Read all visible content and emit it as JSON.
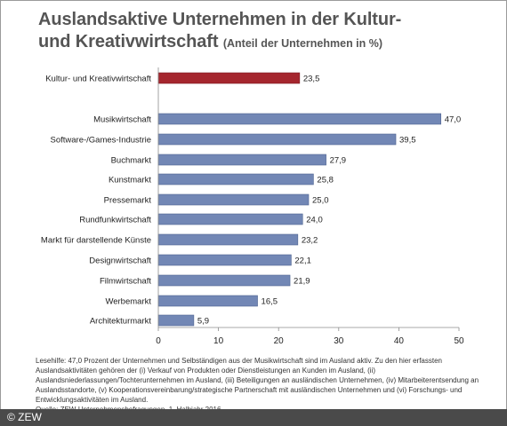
{
  "title": {
    "line1": "Auslandsaktive Unternehmen in der Kultur-",
    "line2": "und Kreativwirtschaft",
    "subtitle": "(Anteil der Unternehmen in %)"
  },
  "colors": {
    "highlight_bar": "#a5262e",
    "bar": "#7287b5",
    "bar_border": "#4f6490",
    "footer_bg": "#4a4a4a"
  },
  "chart_data": {
    "type": "bar",
    "orientation": "horizontal",
    "categories": [
      "Kultur- und Kreativwirtschaft",
      "Musikwirtschaft",
      "Software-/Games-Industrie",
      "Buchmarkt",
      "Kunstmarkt",
      "Pressemarkt",
      "Rundfunkwirtschaft",
      "Markt für darstellende Künste",
      "Designwirtschaft",
      "Filmwirtschaft",
      "Werbemarkt",
      "Architekturmarkt"
    ],
    "values": [
      23.5,
      47.0,
      39.5,
      27.9,
      25.8,
      25.0,
      24.0,
      23.2,
      22.1,
      21.9,
      16.5,
      5.9
    ],
    "value_labels": [
      "23,5",
      "47,0",
      "39,5",
      "27,9",
      "25,8",
      "25,0",
      "24,0",
      "23,2",
      "22,1",
      "21,9",
      "16,5",
      "5,9"
    ],
    "highlight_index": 0,
    "xlim": [
      0,
      50
    ],
    "xticks": [
      0,
      10,
      20,
      30,
      40,
      50
    ],
    "grid": false,
    "legend": "none"
  },
  "notes": {
    "lesehilfe": "Lesehilfe: 47,0 Prozent der Unternehmen und Selbständigen aus der Musikwirtschaft sind im Ausland aktiv. Zu den hier erfassten Auslandsaktivitäten gehören der (i) Verkauf von Produkten oder Dienstleistungen an Kunden im Ausland, (ii) Auslandsniederlassungen/Tochterunternehmen im Ausland, (iii) Beteiligungen an ausländischen Unternehmen, (iv) Mitarbeiterentsendung an Auslandsstandorte, (v) Kooperationsvereinbarung/strategische Partnerschaft mit ausländischen Unternehmen und (vi) Forschungs- und Entwicklungsaktivitäten im Ausland.",
    "quelle": "Quelle: ZEW-Unternehmensbefragungen, 1. Halbjahr 2016."
  },
  "footer": {
    "copyright": "© ZEW"
  }
}
